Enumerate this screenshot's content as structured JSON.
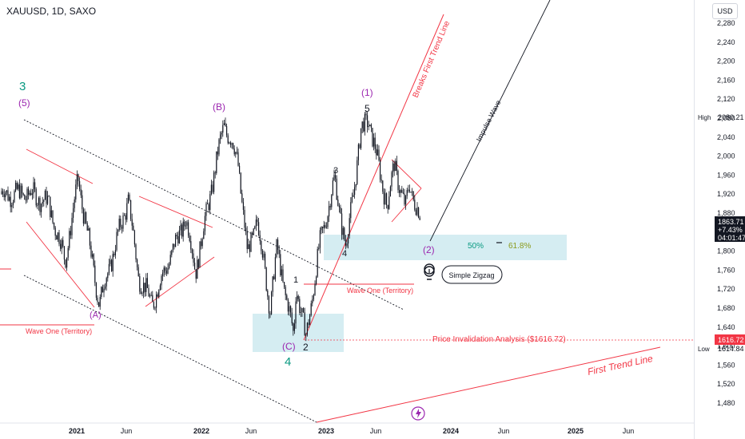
{
  "header": {
    "symbol_line": "XAUUSD, 1D, SAXO"
  },
  "price_scale": {
    "currency": "USD",
    "high_label": "High",
    "high_value": "2080.21",
    "low_label": "Low",
    "low_value": "1614.84",
    "invalidation_value": "1616.72",
    "last_price": "1863.71",
    "change_pct": "+7.43%",
    "countdown": "04:01:47"
  },
  "colors": {
    "candle": "#131722",
    "red_line": "#f23645",
    "purple": "#9c27b0",
    "green": "#089981",
    "box": "#b2dfe8",
    "fib_text": "#8b9a1b"
  },
  "chart_data": {
    "type": "candlestick",
    "symbol": "XAUUSD",
    "timeframe": "1D",
    "source": "SAXO",
    "x_ticks": [
      "2021",
      "Jun",
      "2022",
      "Jun",
      "2023",
      "Jun",
      "2024",
      "Jun",
      "2025",
      "Jun"
    ],
    "y_ticks": [
      1480,
      1520,
      1560,
      1600,
      1640,
      1680,
      1720,
      1760,
      1800,
      1840,
      1880,
      1920,
      1960,
      2000,
      2040,
      2080,
      2120,
      2160,
      2200,
      2240,
      2280
    ],
    "ylim": [
      1440,
      2300
    ],
    "high": 2080.21,
    "low": 1614.84,
    "last_price": 1863.71,
    "change_pct": "+7.43%",
    "countdown": "04:01:47",
    "price_path": [
      [
        "2020-09-01",
        1920
      ],
      [
        "2020-10-15",
        1900
      ],
      [
        "2020-11-30",
        1780
      ],
      [
        "2021-01-05",
        1950
      ],
      [
        "2021-03-08",
        1690
      ],
      [
        "2021-06-01",
        1910
      ],
      [
        "2021-06-30",
        1750
      ],
      [
        "2021-08-09",
        1690
      ],
      [
        "2021-11-16",
        1870
      ],
      [
        "2021-12-15",
        1760
      ],
      [
        "2022-03-08",
        2070
      ],
      [
        "2022-04-18",
        1990
      ],
      [
        "2022-05-16",
        1790
      ],
      [
        "2022-06-13",
        1870
      ],
      [
        "2022-07-21",
        1680
      ],
      [
        "2022-08-10",
        1805
      ],
      [
        "2022-09-28",
        1620
      ],
      [
        "2022-10-05",
        1730
      ],
      [
        "2022-11-03",
        1616
      ],
      [
        "2022-12-15",
        1820
      ],
      [
        "2023-01-26",
        1950
      ],
      [
        "2023-02-28",
        1805
      ],
      [
        "2023-04-13",
        2050
      ],
      [
        "2023-05-04",
        2080
      ],
      [
        "2023-06-29",
        1895
      ],
      [
        "2023-07-20",
        1985
      ],
      [
        "2023-08-21",
        1885
      ],
      [
        "2023-09-01",
        1945
      ],
      [
        "2023-10-04",
        1863
      ]
    ],
    "annotations": {
      "wave_labels": [
        "3",
        "(5)",
        "(A)",
        "(B)",
        "(C)",
        "4",
        "1",
        "2",
        "3",
        "4",
        "5",
        "(1)",
        "(2)"
      ],
      "texts": [
        "Breaks First Trend Line",
        "Impulse Wave",
        "Wave One (Territory)",
        "Wave One (Territory)",
        "Price Invalidation Analysis ($1616.72)",
        "First Trend Line",
        "Simple Zigzag"
      ],
      "fib_levels": [
        "50%",
        "61.8%"
      ],
      "invalidation_level": 1616.72
    }
  }
}
